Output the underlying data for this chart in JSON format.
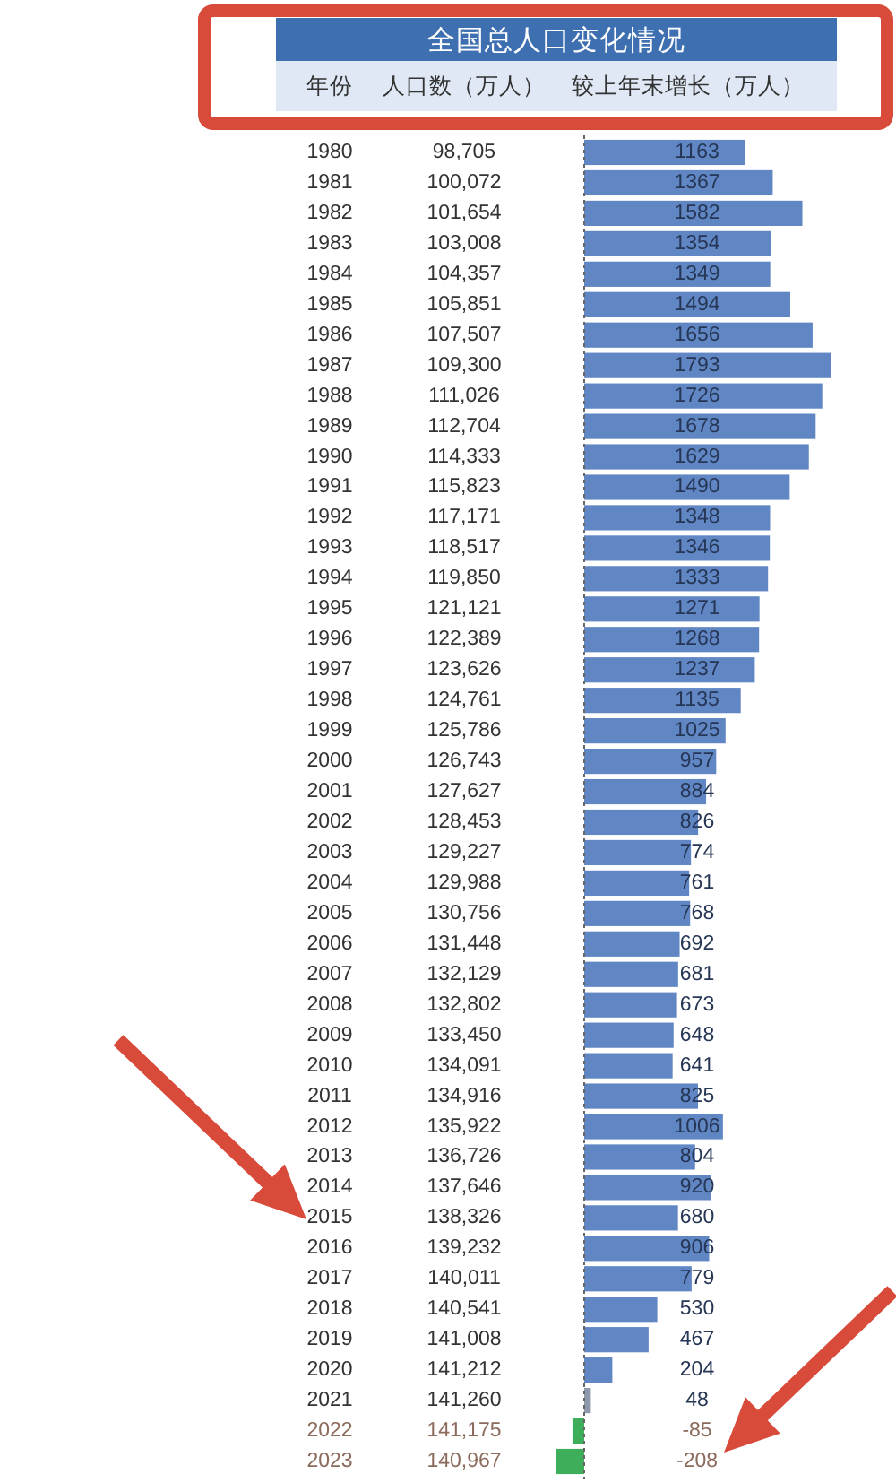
{
  "chart_data": {
    "type": "bar",
    "orientation": "horizontal",
    "title": "全国总人口变化情况",
    "ylabel": "年份",
    "y2label": "人口数（万人）",
    "xlabel": "较上年末增长（万人）",
    "tick_labels": "y",
    "data_labels": true,
    "categories": [
      "1980",
      "1981",
      "1982",
      "1983",
      "1984",
      "1985",
      "1986",
      "1987",
      "1988",
      "1989",
      "1990",
      "1991",
      "1992",
      "1993",
      "1994",
      "1995",
      "1996",
      "1997",
      "1998",
      "1999",
      "2000",
      "2001",
      "2002",
      "2003",
      "2004",
      "2005",
      "2006",
      "2007",
      "2008",
      "2009",
      "2010",
      "2011",
      "2012",
      "2013",
      "2014",
      "2015",
      "2016",
      "2017",
      "2018",
      "2019",
      "2020",
      "2021",
      "2022",
      "2023"
    ],
    "y2_categories": [
      "98,705",
      "100,072",
      "101,654",
      "103,008",
      "104,357",
      "105,851",
      "107,507",
      "109,300",
      "111,026",
      "112,704",
      "114,333",
      "115,823",
      "117,171",
      "118,517",
      "119,850",
      "121,121",
      "122,389",
      "123,626",
      "124,761",
      "125,786",
      "126,743",
      "127,627",
      "128,453",
      "129,227",
      "129,988",
      "130,756",
      "131,448",
      "132,129",
      "132,802",
      "133,450",
      "134,091",
      "134,916",
      "135,922",
      "136,726",
      "137,646",
      "138,326",
      "139,232",
      "140,011",
      "140,541",
      "141,008",
      "141,212",
      "141,260",
      "141,175",
      "140,967"
    ],
    "values": [
      1163,
      1367,
      1582,
      1354,
      1349,
      1494,
      1656,
      1793,
      1726,
      1678,
      1629,
      1490,
      1348,
      1346,
      1333,
      1271,
      1268,
      1237,
      1135,
      1025,
      957,
      884,
      826,
      774,
      761,
      768,
      692,
      681,
      673,
      648,
      641,
      825,
      1006,
      804,
      920,
      680,
      906,
      779,
      530,
      467,
      204,
      48,
      -85,
      -208
    ],
    "colors": [
      "#6086c4",
      "#6086c4",
      "#6086c4",
      "#6086c4",
      "#6086c4",
      "#6086c4",
      "#6086c4",
      "#6086c4",
      "#6086c4",
      "#6086c4",
      "#6086c4",
      "#6086c4",
      "#6086c4",
      "#6086c4",
      "#6086c4",
      "#6086c4",
      "#6086c4",
      "#6086c4",
      "#6086c4",
      "#6086c4",
      "#6086c4",
      "#6086c4",
      "#6086c4",
      "#6086c4",
      "#6086c4",
      "#6086c4",
      "#6086c4",
      "#6086c4",
      "#6086c4",
      "#6086c4",
      "#6086c4",
      "#6086c4",
      "#6086c4",
      "#6086c4",
      "#6086c4",
      "#6086c4",
      "#6086c4",
      "#6086c4",
      "#6086c4",
      "#6086c4",
      "#6086c4",
      "#8e99ad",
      "#3fae5a",
      "#3fae5a"
    ],
    "ref_lines": [
      {
        "axis": "x",
        "value": 0,
        "line_style": "dashed",
        "color": "#666666"
      }
    ]
  }
}
